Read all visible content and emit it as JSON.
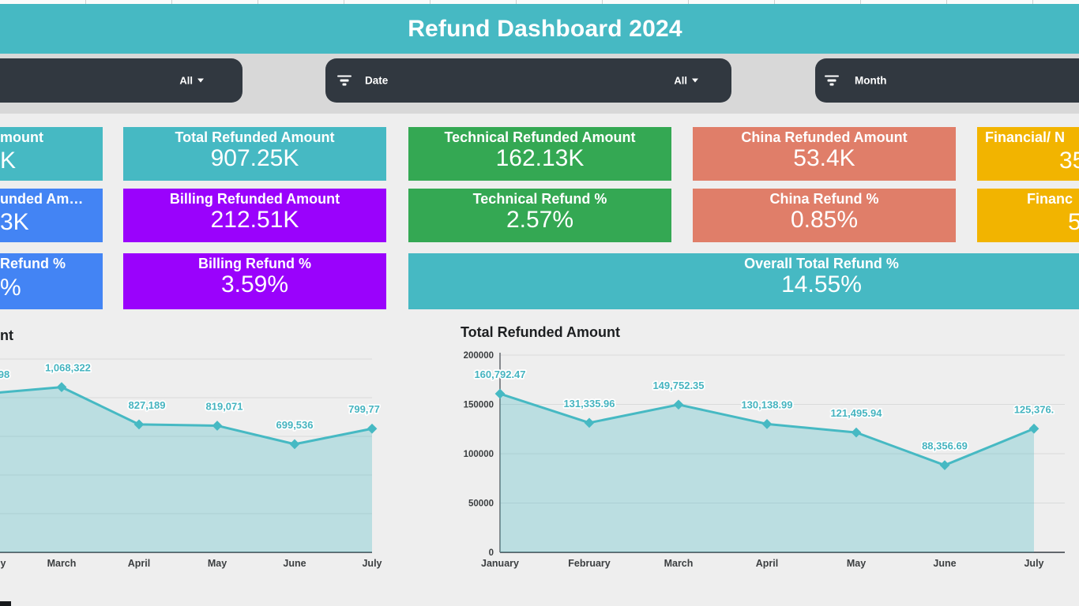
{
  "header": {
    "title": "Refund Dashboard 2024"
  },
  "filters": {
    "filter1": {
      "selected": "All"
    },
    "date": {
      "label": "Date",
      "selected": "All"
    },
    "month": {
      "label": "Month"
    }
  },
  "scorecards": {
    "col1_row1": {
      "title_visible": "mount",
      "value_visible": "K",
      "color": "#46b9c3"
    },
    "col1_row2": {
      "title_visible": "unded Am…",
      "value_visible": "3K",
      "color": "#4384f4"
    },
    "col1_row3": {
      "title_visible": "Refund %",
      "value_visible": "%",
      "color": "#4384f4"
    },
    "col2_row1": {
      "title": "Total Refunded Amount",
      "value": "907.25K",
      "color": "#46b9c3"
    },
    "col2_row2": {
      "title": "Billing Refunded Amount",
      "value": "212.51K",
      "color": "#9a02fc"
    },
    "col2_row3": {
      "title": "Billing Refund %",
      "value": "3.59%",
      "color": "#9a02fc"
    },
    "col3_row1": {
      "title": "Technical Refunded Amount",
      "value": "162.13K",
      "color": "#34a853"
    },
    "col3_row2": {
      "title": "Technical Refund %",
      "value": "2.57%",
      "color": "#34a853"
    },
    "col4_row1": {
      "title": "China Refunded Amount",
      "value": "53.4K",
      "color": "#e07e69"
    },
    "col4_row2": {
      "title": "China Refund %",
      "value": "0.85%",
      "color": "#e07e69"
    },
    "col5_row1": {
      "title_visible": "Financial/ N",
      "value_visible": "35",
      "color": "#f2b400"
    },
    "col5_row2": {
      "title_visible": "Financ",
      "value_visible": "5",
      "color": "#f2b400"
    },
    "overall": {
      "title": "Overall Total Refund %",
      "value": "14.55%",
      "color": "#46b9c3"
    }
  },
  "chart_data": [
    {
      "type": "line",
      "title_visible": "nt",
      "x_labels": [
        "y",
        "March",
        "April",
        "May",
        "June",
        "July"
      ],
      "point_labels": [
        "98",
        "1,068,322",
        "827,189",
        "819,071",
        "699,536",
        "799,77"
      ],
      "values": [
        1025098,
        1068322,
        827189,
        819071,
        699536,
        799770
      ],
      "note": "left edge of chart clipped by viewport; February point/label partially visible",
      "ylim": [
        0,
        1250000
      ],
      "grid": true,
      "line_color": "#46b9c3"
    },
    {
      "type": "line",
      "title": "Total Refunded Amount",
      "x_labels": [
        "January",
        "February",
        "March",
        "April",
        "May",
        "June",
        "July"
      ],
      "point_labels": [
        "160,792.47",
        "131,335.96",
        "149,752.35",
        "130,138.99",
        "121,495.94",
        "88,356.69",
        "125,376."
      ],
      "values": [
        160792.47,
        131335.96,
        149752.35,
        130138.99,
        121495.94,
        88356.69,
        125376
      ],
      "yticks": [
        "200000",
        "150000",
        "100000",
        "50000",
        "0"
      ],
      "ylim": [
        0,
        200000
      ],
      "grid": true,
      "legend": "none",
      "line_color": "#46b9c3"
    }
  ],
  "colors": {
    "teal": "#46b9c3",
    "blue": "#4384f4",
    "purple": "#9a02fc",
    "green": "#34a853",
    "salmon": "#e07e69",
    "gold": "#f2b400",
    "chart_line": "#46b9c3",
    "pill": "#313840"
  }
}
